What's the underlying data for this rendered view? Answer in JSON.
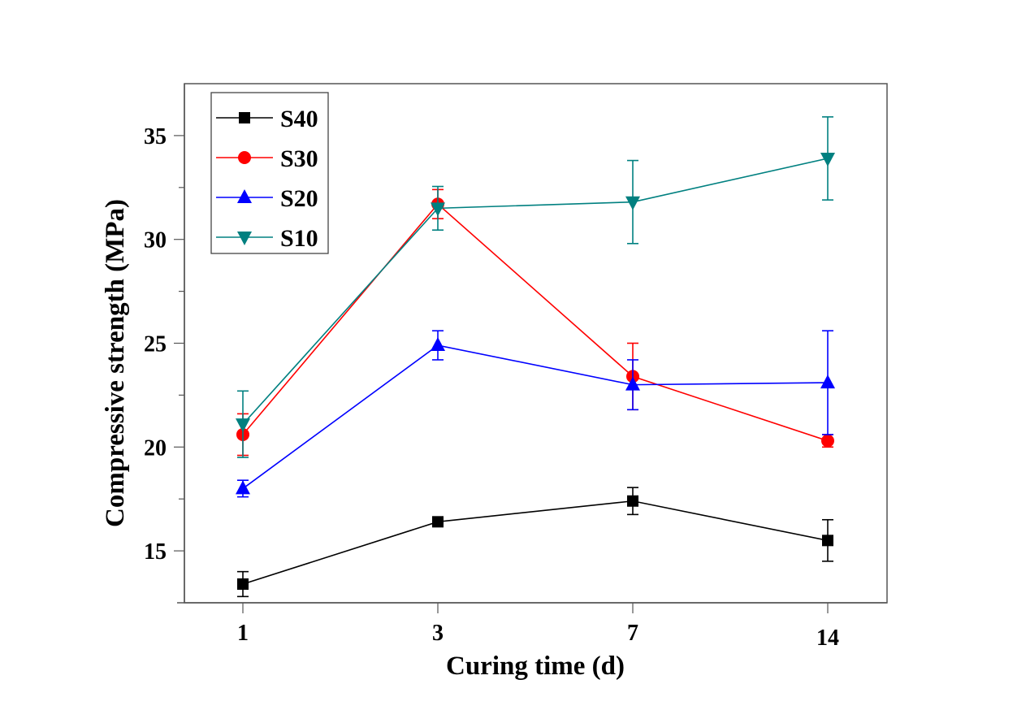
{
  "chart_data": {
    "type": "line",
    "title": "",
    "xlabel": "Curing time (d)",
    "ylabel": "Compressive strength (MPa)",
    "categories": [
      "1",
      "3",
      "7",
      "14"
    ],
    "x_scale": "categorical",
    "ylim": [
      12.5,
      37.5
    ],
    "yticks": [
      15,
      20,
      25,
      30,
      35
    ],
    "yminor_ticks": [
      12.5,
      17.5,
      22.5,
      27.5,
      32.5,
      37.5
    ],
    "grid": false,
    "legend": {
      "position": "top-left",
      "boxed": true
    },
    "series": [
      {
        "name": "S40",
        "color": "#000000",
        "marker": "square",
        "values": [
          13.4,
          16.4,
          17.4,
          15.5
        ],
        "errors": [
          0.6,
          0.2,
          0.65,
          1.0
        ]
      },
      {
        "name": "S30",
        "color": "#ff0000",
        "marker": "circle",
        "values": [
          20.6,
          31.7,
          23.4,
          20.3
        ],
        "errors": [
          1.0,
          0.7,
          1.6,
          0.3
        ]
      },
      {
        "name": "S20",
        "color": "#0000ff",
        "marker": "triangle-up",
        "values": [
          18.0,
          24.9,
          23.0,
          23.1
        ],
        "errors": [
          0.4,
          0.7,
          1.2,
          2.5
        ]
      },
      {
        "name": "S10",
        "color": "#008080",
        "marker": "triangle-down",
        "values": [
          21.1,
          31.5,
          31.8,
          33.9
        ],
        "errors": [
          1.6,
          1.05,
          2.0,
          2.0
        ]
      }
    ]
  }
}
